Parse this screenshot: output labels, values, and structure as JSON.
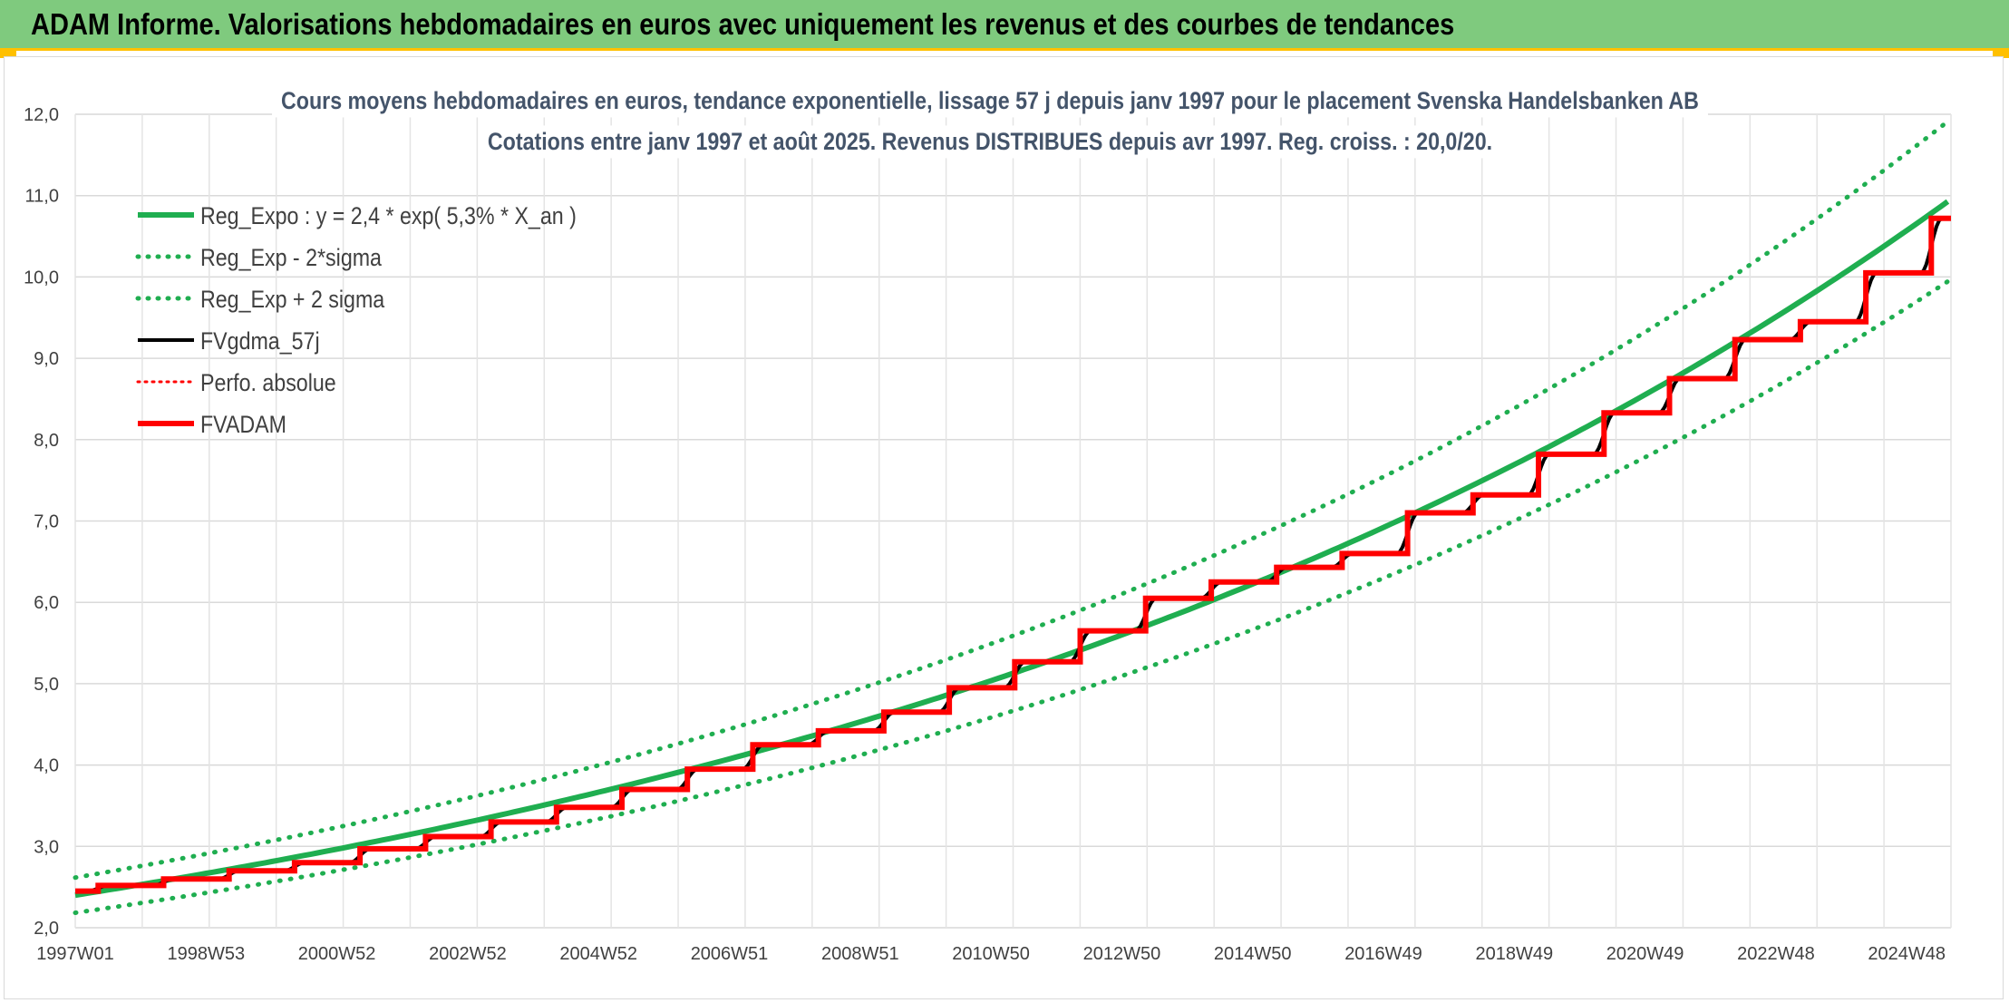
{
  "header": {
    "title": "ADAM Informe. Valorisations hebdomadaires en euros avec uniquement les revenus et des courbes de tendances"
  },
  "colors": {
    "header_bg": "#7fca7e",
    "accent": "#ffc000",
    "reg_green": "#1fae50",
    "fv_black": "#000000",
    "adam_red": "#ff0000"
  },
  "chart_data": {
    "type": "line",
    "title_lines": [
      "Cours moyens hebdomadaires en euros, tendance exponentielle, lissage 57 j depuis janv 1997 pour le placement Svenska Handelsbanken AB",
      "Cotations entre janv 1997 et août 2025. Revenus DISTRIBUES depuis avr 1997. Reg. croiss. : 20,0/20."
    ],
    "x_tick_labels": [
      "1997W01",
      "1998W53",
      "2000W52",
      "2002W52",
      "2004W52",
      "2006W51",
      "2008W51",
      "2010W50",
      "2012W50",
      "2014W50",
      "2016W49",
      "2018W49",
      "2020W49",
      "2022W48",
      "2024W48"
    ],
    "y_tick_labels": [
      "2,0",
      "3,0",
      "4,0",
      "5,0",
      "6,0",
      "7,0",
      "8,0",
      "9,0",
      "10,0",
      "11,0",
      "12,0"
    ],
    "x_range": [
      1997.0,
      2025.65
    ],
    "y_range": [
      2.0,
      12.0
    ],
    "grid": true,
    "legend_position": "top-left",
    "regression": {
      "a": 2.4,
      "rate": 0.053,
      "sigma_factor": 0.045
    },
    "series": [
      {
        "name": "Reg_Expo : y = 2,4 * exp( 5,3% *  X_an )",
        "style": "solid",
        "color": "#1fae50",
        "width": 6
      },
      {
        "name": "Reg_Exp - 2*sigma",
        "style": "dotted",
        "color": "#1fae50",
        "width": 5
      },
      {
        "name": "Reg_Exp + 2 sigma",
        "style": "dotted",
        "color": "#1fae50",
        "width": 5
      },
      {
        "name": "FVgdma_57j",
        "style": "solid",
        "color": "#000000",
        "width": 4
      },
      {
        "name": "Perfo. absolue",
        "style": "dotted",
        "color": "#ff0000",
        "width": 3
      },
      {
        "name": "FVADAM",
        "style": "solid",
        "color": "#ff0000",
        "width": 6
      }
    ],
    "fvadam_steps": {
      "dates": [
        1997.0,
        1997.35,
        1998.35,
        1999.35,
        2000.35,
        2001.35,
        2002.35,
        2003.35,
        2004.35,
        2005.35,
        2006.35,
        2007.35,
        2008.35,
        2009.35,
        2010.35,
        2011.35,
        2012.35,
        2013.35,
        2014.35,
        2015.35,
        2016.35,
        2017.35,
        2018.35,
        2019.35,
        2020.35,
        2021.35,
        2022.35,
        2023.35,
        2024.35,
        2025.35,
        2025.65
      ],
      "values": [
        2.45,
        2.52,
        2.6,
        2.7,
        2.8,
        2.97,
        3.12,
        3.3,
        3.48,
        3.7,
        3.95,
        4.25,
        4.42,
        4.65,
        4.95,
        5.27,
        5.65,
        6.05,
        6.25,
        6.43,
        6.6,
        7.1,
        7.32,
        7.82,
        8.33,
        8.75,
        9.23,
        9.45,
        10.05,
        10.72,
        10.72
      ]
    }
  }
}
